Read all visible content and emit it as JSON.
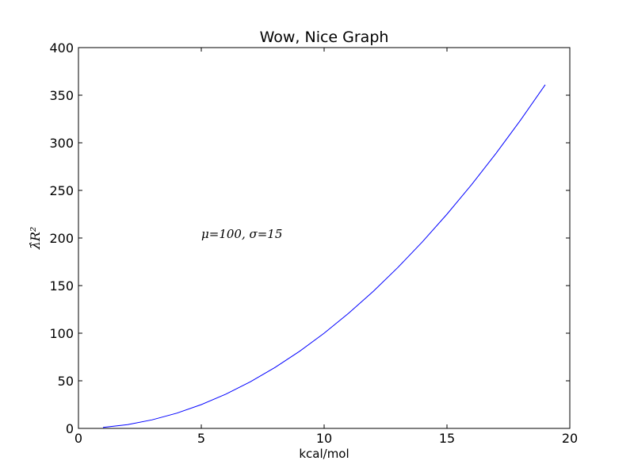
{
  "chart_data": {
    "type": "line",
    "title": "Wow, Nice Graph",
    "xlabel": "kcal/mol",
    "ylabel": "λ̂R²",
    "xlim": [
      0,
      20
    ],
    "ylim": [
      0,
      400
    ],
    "x_ticks": [
      0,
      5,
      10,
      15,
      20
    ],
    "y_ticks": [
      0,
      50,
      100,
      150,
      200,
      250,
      300,
      350,
      400
    ],
    "grid": false,
    "series": [
      {
        "color": "#0000ff",
        "x": [
          1,
          2,
          3,
          4,
          5,
          6,
          7,
          8,
          9,
          10,
          11,
          12,
          13,
          14,
          15,
          16,
          17,
          18,
          19
        ],
        "y": [
          1,
          4,
          9,
          16,
          25,
          36,
          49,
          64,
          81,
          100,
          121,
          144,
          169,
          196,
          225,
          256,
          289,
          324,
          361
        ]
      }
    ],
    "annotations": [
      {
        "text": "μ=100, σ=15",
        "x": 5,
        "y": 200
      }
    ]
  }
}
